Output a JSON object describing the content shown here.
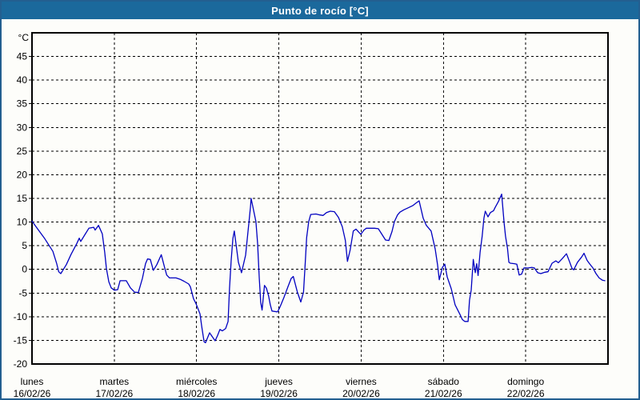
{
  "window": {
    "title": "Punto de rocío [°C]",
    "title_bar_color": "#1b699c",
    "border_color": "#235f90"
  },
  "chart_data": {
    "type": "line",
    "title": "Punto de rocío [°C]",
    "y_unit_label": "°C",
    "y_bottom_label": "-20",
    "ylim": [
      -20,
      50
    ],
    "y_ticks": [
      45,
      40,
      35,
      30,
      25,
      20,
      15,
      10,
      5,
      0,
      -5,
      -10,
      -15
    ],
    "grid": "dashed-black",
    "legend": "none",
    "line_color": "#0000c0",
    "x_range_hours": [
      0,
      168
    ],
    "x_days": [
      {
        "name": "lunes",
        "date": "16/02/26"
      },
      {
        "name": "martes",
        "date": "17/02/26"
      },
      {
        "name": "miércoles",
        "date": "18/02/26"
      },
      {
        "name": "jueves",
        "date": "19/02/26"
      },
      {
        "name": "viernes",
        "date": "20/02/26"
      },
      {
        "name": "sábado",
        "date": "21/02/26"
      },
      {
        "name": "domingo",
        "date": "22/02/26"
      }
    ],
    "series": [
      {
        "name": "Punto de rocío",
        "units": "°C",
        "points": [
          [
            0,
            10.2
          ],
          [
            1.4,
            8.8
          ],
          [
            3.7,
            6.5
          ],
          [
            6.1,
            3.8
          ],
          [
            7.2,
            1.2
          ],
          [
            7.8,
            -0.5
          ],
          [
            8.4,
            -0.9
          ],
          [
            10,
            1
          ],
          [
            11.4,
            3.2
          ],
          [
            13.1,
            5.5
          ],
          [
            13.8,
            6.6
          ],
          [
            14.2,
            5.9
          ],
          [
            15.4,
            7.3
          ],
          [
            16.6,
            8.7
          ],
          [
            18,
            8.9
          ],
          [
            18.4,
            8.3
          ],
          [
            19.4,
            9.3
          ],
          [
            20.5,
            7.5
          ],
          [
            21.2,
            3.6
          ],
          [
            21.7,
            0.2
          ],
          [
            22.4,
            -2.6
          ],
          [
            23.1,
            -3.9
          ],
          [
            24,
            -4.4
          ],
          [
            25,
            -4.3
          ],
          [
            25.7,
            -2.4
          ],
          [
            27.5,
            -2.4
          ],
          [
            28.7,
            -3.9
          ],
          [
            29.9,
            -4.8
          ],
          [
            31,
            -4.9
          ],
          [
            32.2,
            -1.9
          ],
          [
            33.1,
            1.2
          ],
          [
            33.7,
            2.2
          ],
          [
            34.5,
            2.1
          ],
          [
            35.4,
            -0.2
          ],
          [
            36.4,
            1
          ],
          [
            37.7,
            3.1
          ],
          [
            38.7,
            0.3
          ],
          [
            39.3,
            -1.2
          ],
          [
            40.1,
            -1.8
          ],
          [
            42,
            -1.8
          ],
          [
            43.2,
            -2.1
          ],
          [
            44.3,
            -2.5
          ],
          [
            45.7,
            -3.1
          ],
          [
            46.2,
            -3.7
          ],
          [
            47.1,
            -6.2
          ],
          [
            47.8,
            -7.2
          ],
          [
            49,
            -9.4
          ],
          [
            49.5,
            -12
          ],
          [
            50.2,
            -15.3
          ],
          [
            50.6,
            -15.5
          ],
          [
            51.8,
            -13.4
          ],
          [
            53.4,
            -15.1
          ],
          [
            54.1,
            -14
          ],
          [
            54.8,
            -12.7
          ],
          [
            55.5,
            -13
          ],
          [
            56.5,
            -12.5
          ],
          [
            57.2,
            -11
          ],
          [
            57.6,
            -4
          ],
          [
            58.1,
            2
          ],
          [
            58.6,
            6.5
          ],
          [
            59,
            8.1
          ],
          [
            60.2,
            1.5
          ],
          [
            61.1,
            -0.7
          ],
          [
            62.3,
            3
          ],
          [
            63,
            8
          ],
          [
            63.7,
            13
          ],
          [
            63.9,
            15
          ],
          [
            65.3,
            10.1
          ],
          [
            65.8,
            5.5
          ],
          [
            66.3,
            -1.9
          ],
          [
            66.7,
            -7
          ],
          [
            67.1,
            -8.6
          ],
          [
            67.8,
            -3.4
          ],
          [
            68.4,
            -4
          ],
          [
            69,
            -5.6
          ],
          [
            69.5,
            -7.5
          ],
          [
            70,
            -8.8
          ],
          [
            71.6,
            -9
          ],
          [
            72.3,
            -8
          ],
          [
            73.5,
            -5.9
          ],
          [
            74.7,
            -3.6
          ],
          [
            75.6,
            -1.9
          ],
          [
            76.2,
            -1.5
          ],
          [
            77.4,
            -4.8
          ],
          [
            78.4,
            -6.9
          ],
          [
            79.2,
            -4.8
          ],
          [
            79.7,
            1.5
          ],
          [
            80.1,
            6.7
          ],
          [
            80.7,
            10.1
          ],
          [
            81.3,
            11.6
          ],
          [
            82.8,
            11.7
          ],
          [
            84,
            11.5
          ],
          [
            84.9,
            11.4
          ],
          [
            85.9,
            12
          ],
          [
            87,
            12.3
          ],
          [
            88.2,
            12.2
          ],
          [
            89.4,
            11
          ],
          [
            90.5,
            9
          ],
          [
            91.4,
            6.1
          ],
          [
            92,
            1.7
          ],
          [
            92.8,
            4.1
          ],
          [
            93.7,
            8.1
          ],
          [
            94.5,
            8.5
          ],
          [
            95.9,
            7.4
          ],
          [
            96.8,
            8.3
          ],
          [
            97.5,
            8.7
          ],
          [
            99.9,
            8.7
          ],
          [
            101,
            8.6
          ],
          [
            103.1,
            6.2
          ],
          [
            104.1,
            6.1
          ],
          [
            105,
            8
          ],
          [
            105.7,
            10.1
          ],
          [
            106.6,
            11.5
          ],
          [
            107.3,
            12.1
          ],
          [
            108.5,
            12.6
          ],
          [
            109.7,
            13
          ],
          [
            111.1,
            13.5
          ],
          [
            112,
            14
          ],
          [
            112.9,
            14.5
          ],
          [
            114.1,
            10.8
          ],
          [
            115,
            9.3
          ],
          [
            116.4,
            8.1
          ],
          [
            117.6,
            4.3
          ],
          [
            118.3,
            0.9
          ],
          [
            118.8,
            -2.2
          ],
          [
            119.7,
            0.4
          ],
          [
            120.4,
            1.1
          ],
          [
            121.1,
            -1.6
          ],
          [
            122.3,
            -4.1
          ],
          [
            123.4,
            -7.5
          ],
          [
            124.8,
            -9.5
          ],
          [
            125.5,
            -10.6
          ],
          [
            126.2,
            -11
          ],
          [
            127.2,
            -11
          ],
          [
            127.6,
            -6.5
          ],
          [
            128.1,
            -4.4
          ],
          [
            128.7,
            2.1
          ],
          [
            129.3,
            -0.7
          ],
          [
            129.7,
            1.2
          ],
          [
            130.1,
            -1.3
          ],
          [
            130.7,
            3.6
          ],
          [
            131.3,
            7
          ],
          [
            131.8,
            10.8
          ],
          [
            132.2,
            12.3
          ],
          [
            133,
            11.1
          ],
          [
            133.7,
            12
          ],
          [
            134.6,
            12.4
          ],
          [
            135.1,
            13.1
          ],
          [
            136,
            14.3
          ],
          [
            137,
            15.9
          ],
          [
            137.7,
            9.9
          ],
          [
            138.1,
            7
          ],
          [
            138.7,
            4.4
          ],
          [
            139.1,
            1.5
          ],
          [
            139.5,
            1.3
          ],
          [
            140.7,
            1.2
          ],
          [
            141.4,
            1.1
          ],
          [
            142.1,
            -1.2
          ],
          [
            142.8,
            -1
          ],
          [
            143.5,
            0.3
          ],
          [
            144.7,
            0.3
          ],
          [
            145.8,
            0.4
          ],
          [
            146.5,
            0.3
          ],
          [
            147.5,
            -0.7
          ],
          [
            148.4,
            -0.9
          ],
          [
            149.6,
            -0.6
          ],
          [
            150.5,
            -0.5
          ],
          [
            151.7,
            1.3
          ],
          [
            152.8,
            1.8
          ],
          [
            153.5,
            1.4
          ],
          [
            154.7,
            2.3
          ],
          [
            155.9,
            3.3
          ],
          [
            156.8,
            1.6
          ],
          [
            157.5,
            0.2
          ],
          [
            158,
            -0.1
          ],
          [
            159.1,
            1.5
          ],
          [
            160.3,
            2.6
          ],
          [
            161,
            3.4
          ],
          [
            161.9,
            1.9
          ],
          [
            162.6,
            1.2
          ],
          [
            163.6,
            0.3
          ],
          [
            164.5,
            -0.9
          ],
          [
            165.4,
            -1.8
          ],
          [
            166.4,
            -2.3
          ],
          [
            167.1,
            -2.4
          ]
        ]
      }
    ]
  }
}
